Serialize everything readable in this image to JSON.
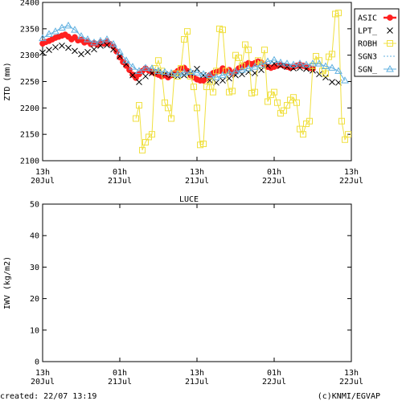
{
  "chart_data": [
    {
      "type": "line",
      "title": "",
      "ylabel": "ZTD (mm)",
      "xlabel": "",
      "ylim": [
        2100,
        2400
      ],
      "yticks": [
        2100,
        2150,
        2200,
        2250,
        2300,
        2350,
        2400
      ],
      "xlim": [
        0,
        48
      ],
      "xticks": [
        {
          "t": 0,
          "top": "13h",
          "bottom": "20Jul"
        },
        {
          "t": 12,
          "top": "01h",
          "bottom": "21Jul"
        },
        {
          "t": 24,
          "top": "13h",
          "bottom": "21Jul"
        },
        {
          "t": 36,
          "top": "01h",
          "bottom": "22Jul"
        },
        {
          "t": 48,
          "top": "13h",
          "bottom": "22Jul"
        }
      ],
      "legend_position": "right",
      "series": [
        {
          "name": "ASIC",
          "color": "#ff2020",
          "marker": "dot",
          "x": [
            0,
            0.5,
            1,
            1.5,
            2,
            2.5,
            3,
            3.5,
            4,
            4.5,
            5,
            5.5,
            6,
            6.5,
            7,
            7.5,
            8,
            8.5,
            9,
            9.5,
            10,
            10.5,
            11,
            11.5,
            12,
            12.5,
            13,
            13.5,
            14,
            14.5,
            15,
            15.5,
            16,
            16.5,
            17,
            17.5,
            18,
            18.5,
            19,
            19.5,
            20,
            20.5,
            21,
            21.5,
            22,
            22.5,
            23,
            23.5,
            24,
            24.5,
            25,
            25.5,
            26,
            26.5,
            27,
            27.5,
            28,
            28.5,
            29,
            29.5,
            30,
            30.5,
            31,
            31.5,
            32,
            32.5,
            33,
            33.5,
            34,
            34.5,
            35,
            35.5,
            36,
            36.5,
            37,
            37.5,
            38,
            38.5,
            39,
            39.5,
            40,
            40.5,
            41,
            41.5,
            42
          ],
          "y": [
            2322,
            2325,
            2327,
            2330,
            2333,
            2335,
            2337,
            2339,
            2335,
            2330,
            2334,
            2328,
            2329,
            2324,
            2326,
            2321,
            2323,
            2320,
            2324,
            2322,
            2326,
            2321,
            2316,
            2307,
            2296,
            2287,
            2280,
            2272,
            2263,
            2257,
            2264,
            2270,
            2275,
            2271,
            2268,
            2265,
            2263,
            2260,
            2262,
            2258,
            2262,
            2266,
            2270,
            2274,
            2276,
            2270,
            2262,
            2258,
            2254,
            2252,
            2252,
            2256,
            2262,
            2266,
            2268,
            2270,
            2275,
            2270,
            2272,
            2265,
            2270,
            2275,
            2278,
            2282,
            2285,
            2283,
            2285,
            2288,
            2286,
            2282,
            2278,
            2276,
            2278,
            2280,
            2282,
            2280,
            2278,
            2276,
            2278,
            2280,
            2282,
            2280,
            2278,
            2276,
            2274
          ]
        },
        {
          "name": "LPT_",
          "color": "#000000",
          "marker": "x",
          "x": [
            0,
            1,
            2,
            3,
            4,
            5,
            6,
            7,
            8,
            9,
            10,
            11,
            12,
            13,
            14,
            15,
            16,
            17,
            18,
            19,
            20,
            21,
            22,
            23,
            24,
            25,
            26,
            27,
            28,
            29,
            30,
            31,
            32,
            33,
            34,
            35,
            36,
            37,
            38,
            39,
            40,
            41,
            42,
            43,
            44,
            45,
            46
          ],
          "y": [
            2305,
            2310,
            2315,
            2318,
            2314,
            2308,
            2302,
            2306,
            2311,
            2318,
            2319,
            2311,
            2298,
            2283,
            2262,
            2249,
            2260,
            2266,
            2268,
            2264,
            2262,
            2260,
            2262,
            2266,
            2274,
            2262,
            2252,
            2248,
            2252,
            2256,
            2262,
            2264,
            2268,
            2266,
            2272,
            2280,
            2284,
            2280,
            2278,
            2275,
            2276,
            2274,
            2271,
            2264,
            2258,
            2249,
            2248
          ]
        },
        {
          "name": "ROBH",
          "color": "#f0e040",
          "marker": "square",
          "x": [
            14.5,
            15,
            15.5,
            16,
            16.5,
            17,
            17.5,
            18,
            18.5,
            19,
            19.5,
            20,
            20.5,
            21,
            21.5,
            22,
            22.5,
            23,
            23.5,
            24,
            24.5,
            25,
            25.5,
            26,
            26.5,
            27,
            27.5,
            28,
            28.5,
            29,
            29.5,
            30,
            30.5,
            31,
            31.5,
            32,
            32.5,
            33,
            33.5,
            34,
            34.5,
            35,
            35.5,
            36,
            36.5,
            37,
            37.5,
            38,
            38.5,
            39,
            39.5,
            40,
            40.5,
            41,
            41.5,
            42,
            42.5,
            43,
            43.5,
            44,
            44.5,
            45,
            45.5,
            46,
            46.5,
            47,
            47.5
          ],
          "y": [
            2180,
            2205,
            2120,
            2135,
            2145,
            2150,
            2275,
            2290,
            2270,
            2210,
            2200,
            2180,
            2265,
            2260,
            2275,
            2330,
            2345,
            2260,
            2240,
            2200,
            2130,
            2132,
            2240,
            2250,
            2230,
            2270,
            2350,
            2348,
            2270,
            2230,
            2232,
            2300,
            2295,
            2280,
            2320,
            2310,
            2228,
            2230,
            2290,
            2282,
            2310,
            2212,
            2225,
            2230,
            2210,
            2190,
            2195,
            2205,
            2215,
            2220,
            2210,
            2160,
            2150,
            2170,
            2175,
            2280,
            2298,
            2290,
            2270,
            2265,
            2297,
            2302,
            2378,
            2380,
            2175,
            2140,
            2150
          ]
        },
        {
          "name": "SGN3",
          "color": "#60b0e0",
          "marker": "none",
          "x": [],
          "y": []
        },
        {
          "name": "SGN_",
          "color": "#60b0e0",
          "marker": "triangle",
          "x": [
            0,
            1,
            2,
            3,
            4,
            5,
            6,
            7,
            8,
            9,
            10,
            11,
            12,
            13,
            14,
            15,
            16,
            17,
            18,
            19,
            20,
            21,
            22,
            23,
            24,
            25,
            26,
            27,
            28,
            29,
            30,
            31,
            32,
            33,
            34,
            35,
            36,
            37,
            38,
            39,
            40,
            41,
            42,
            43,
            44,
            45,
            46,
            47
          ],
          "y": [
            2332,
            2340,
            2345,
            2352,
            2356,
            2348,
            2336,
            2330,
            2324,
            2327,
            2330,
            2321,
            2306,
            2290,
            2278,
            2270,
            2276,
            2275,
            2270,
            2268,
            2266,
            2264,
            2267,
            2268,
            2267,
            2264,
            2262,
            2258,
            2262,
            2266,
            2269,
            2272,
            2275,
            2278,
            2282,
            2288,
            2291,
            2286,
            2284,
            2282,
            2284,
            2282,
            2284,
            2284,
            2279,
            2276,
            2270,
            2252
          ]
        }
      ]
    },
    {
      "type": "line",
      "title": "LUCE",
      "ylabel": "IWV (kg/m2)",
      "xlabel": "",
      "ylim": [
        0,
        50
      ],
      "yticks": [
        0,
        10,
        20,
        30,
        40,
        50
      ],
      "xlim": [
        0,
        48
      ],
      "xticks": [
        {
          "t": 0,
          "top": "13h",
          "bottom": "20Jul"
        },
        {
          "t": 12,
          "top": "01h",
          "bottom": "21Jul"
        },
        {
          "t": 24,
          "top": "13h",
          "bottom": "21Jul"
        },
        {
          "t": 36,
          "top": "01h",
          "bottom": "22Jul"
        },
        {
          "t": 48,
          "top": "13h",
          "bottom": "22Jul"
        }
      ],
      "series": []
    }
  ],
  "footer": {
    "created": "created: 22/07 13:19",
    "credit": "(c)KNMI/EGVAP"
  }
}
